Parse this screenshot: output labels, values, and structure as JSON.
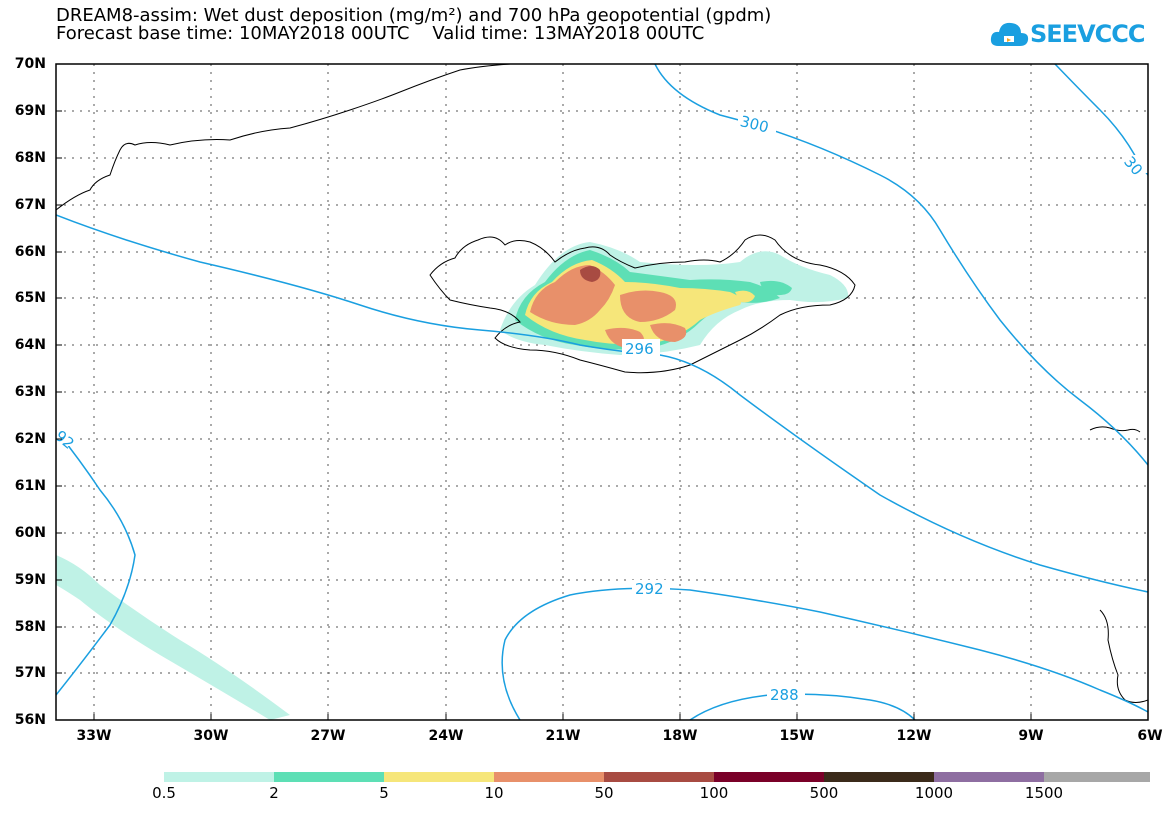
{
  "header": {
    "line1": "DREAM8-assim: Wet dust deposition (mg/m²) and 700 hPa geopotential (gpdm)",
    "line2": "Forecast base time: 10MAY2018 00UTC    Valid time: 13MAY2018 00UTC"
  },
  "logo": {
    "text": "SEEVCCC",
    "color": "#1a9fe0"
  },
  "map": {
    "lat_labels": [
      "70N",
      "69N",
      "68N",
      "67N",
      "66N",
      "65N",
      "64N",
      "63N",
      "62N",
      "61N",
      "60N",
      "59N",
      "58N",
      "57N",
      "56N"
    ],
    "lon_labels": [
      "33W",
      "30W",
      "27W",
      "24W",
      "21W",
      "18W",
      "15W",
      "12W",
      "9W",
      "6W"
    ],
    "contour_labels": [
      "300",
      "30",
      "296",
      "92",
      "292",
      "288"
    ],
    "contour_color": "#1a9fe0"
  },
  "legend": {
    "colors": [
      "#bff2e6",
      "#5ddfb5",
      "#f6e67a",
      "#e8906a",
      "#a84b42",
      "#7a0028",
      "#3b2a1a",
      "#8e6ea1",
      "#a7a7a7"
    ],
    "labels": [
      "0.5",
      "2",
      "5",
      "10",
      "50",
      "100",
      "500",
      "1000",
      "1500"
    ]
  }
}
